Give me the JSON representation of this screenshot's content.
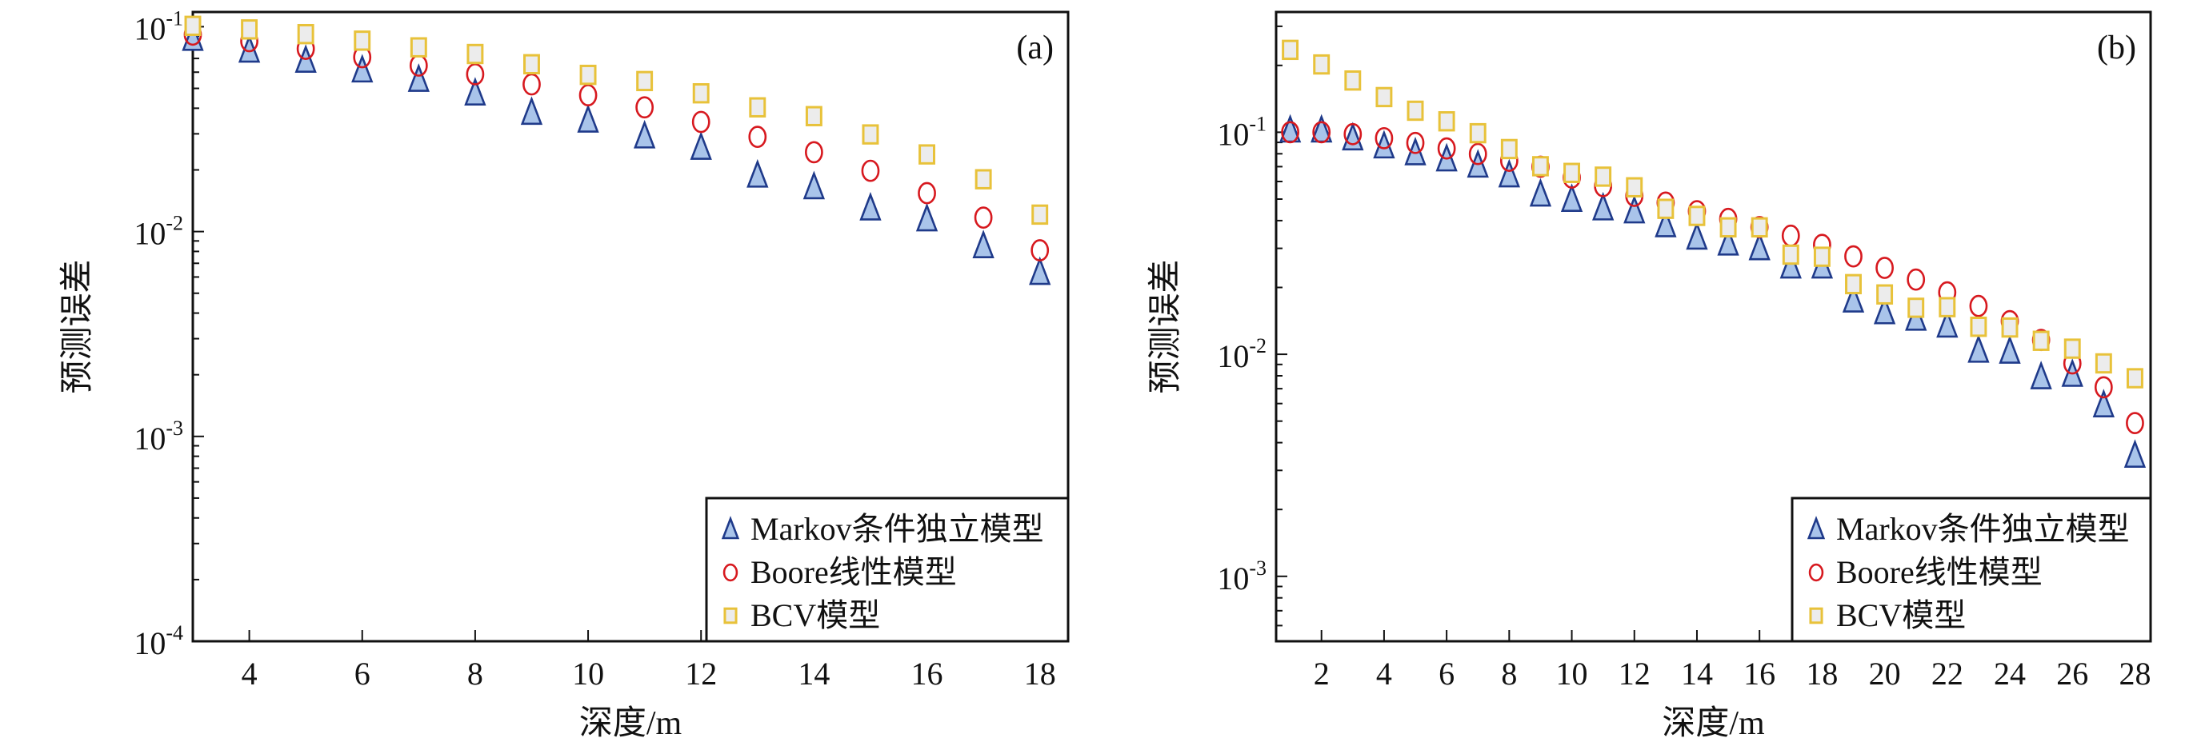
{
  "colors": {
    "markov_fill": "#a9c4ea",
    "markov_stroke": "#1f3a8a",
    "boore": "#d7191f",
    "bcv_stroke": "#e8c23a",
    "bcv_fill": "#ececec"
  },
  "chart_data": [
    {
      "type": "scatter",
      "panel_label": "(a)",
      "xlabel": "深度/m",
      "ylabel": "预测误差",
      "yscale": "log",
      "xlim": [
        3,
        18.5
      ],
      "ylim": [
        0.0001,
        0.118
      ],
      "xticks": [
        4,
        6,
        8,
        10,
        12,
        14,
        16,
        18
      ],
      "yticks": [
        {
          "value": 0.1,
          "base": "10",
          "exp": "-1"
        },
        {
          "value": 0.01,
          "base": "10",
          "exp": "-2"
        },
        {
          "value": 0.001,
          "base": "10",
          "exp": "-3"
        },
        {
          "value": 0.0001,
          "base": "10",
          "exp": "-4"
        }
      ],
      "legend_position": "bottom-right",
      "x": [
        3,
        4,
        5,
        6,
        7,
        8,
        9,
        10,
        11,
        12,
        13,
        14,
        15,
        16,
        17,
        18
      ],
      "series": [
        {
          "name": "Markov条件独立模型",
          "marker": "triangle",
          "values": [
            0.0875,
            0.0766,
            0.0684,
            0.0613,
            0.0552,
            0.0473,
            0.0381,
            0.0349,
            0.0292,
            0.0257,
            0.0188,
            0.0165,
            0.013,
            0.0115,
            0.0085,
            0.0063
          ]
        },
        {
          "name": "Boore线性模型",
          "marker": "circle",
          "values": [
            0.0915,
            0.085,
            0.078,
            0.071,
            0.0646,
            0.0586,
            0.0523,
            0.0463,
            0.0404,
            0.0343,
            0.029,
            0.0244,
            0.0198,
            0.0154,
            0.0117,
            0.0081
          ]
        },
        {
          "name": "BCV模型",
          "marker": "square",
          "values": [
            0.101,
            0.097,
            0.092,
            0.0855,
            0.0793,
            0.0736,
            0.0656,
            0.0582,
            0.0543,
            0.0473,
            0.0404,
            0.0366,
            0.0298,
            0.0238,
            0.018,
            0.0121
          ]
        }
      ]
    },
    {
      "type": "scatter",
      "panel_label": "(b)",
      "xlabel": "深度/m",
      "ylabel": "预测误差",
      "yscale": "log",
      "xlim": [
        0.55,
        28.5
      ],
      "ylim": [
        0.00051,
        0.348
      ],
      "xticks": [
        2,
        4,
        6,
        8,
        10,
        12,
        14,
        16,
        18,
        20,
        22,
        24,
        26,
        28
      ],
      "yticks": [
        {
          "value": 0.1,
          "base": "10",
          "exp": "-1"
        },
        {
          "value": 0.01,
          "base": "10",
          "exp": "-2"
        },
        {
          "value": 0.001,
          "base": "10",
          "exp": "-3"
        }
      ],
      "legend_position": "bottom-right",
      "x": [
        1,
        2,
        3,
        4,
        5,
        6,
        7,
        8,
        9,
        10,
        11,
        12,
        13,
        14,
        15,
        16,
        17,
        18,
        19,
        20,
        21,
        22,
        23,
        24,
        25,
        26,
        27,
        28
      ],
      "series": [
        {
          "name": "Markov条件独立模型",
          "marker": "triangle",
          "values": [
            0.102,
            0.102,
            0.094,
            0.0865,
            0.0806,
            0.0756,
            0.0709,
            0.0641,
            0.0525,
            0.0497,
            0.0455,
            0.0441,
            0.0382,
            0.0336,
            0.0316,
            0.0301,
            0.0249,
            0.0249,
            0.0175,
            0.0155,
            0.0145,
            0.0135,
            0.0104,
            0.0103,
            0.0079,
            0.0081,
            0.0059,
            0.0035
          ]
        },
        {
          "name": "Boore线性模型",
          "marker": "circle",
          "values": [
            0.1,
            0.1,
            0.098,
            0.094,
            0.0895,
            0.0845,
            0.0798,
            0.0744,
            0.0699,
            0.0625,
            0.0572,
            0.0517,
            0.0482,
            0.0441,
            0.0407,
            0.0374,
            0.0342,
            0.0311,
            0.0276,
            0.0245,
            0.0217,
            0.019,
            0.0165,
            0.0141,
            0.0116,
            0.0091,
            0.0071,
            0.0049
          ]
        },
        {
          "name": "BCV模型",
          "marker": "square",
          "values": [
            0.235,
            0.202,
            0.171,
            0.144,
            0.125,
            0.112,
            0.099,
            0.084,
            0.0703,
            0.0656,
            0.0631,
            0.0565,
            0.0452,
            0.042,
            0.0373,
            0.0373,
            0.0281,
            0.0275,
            0.0207,
            0.0186,
            0.0162,
            0.0163,
            0.0133,
            0.0132,
            0.0115,
            0.0106,
            0.0091,
            0.0078
          ]
        }
      ]
    }
  ]
}
